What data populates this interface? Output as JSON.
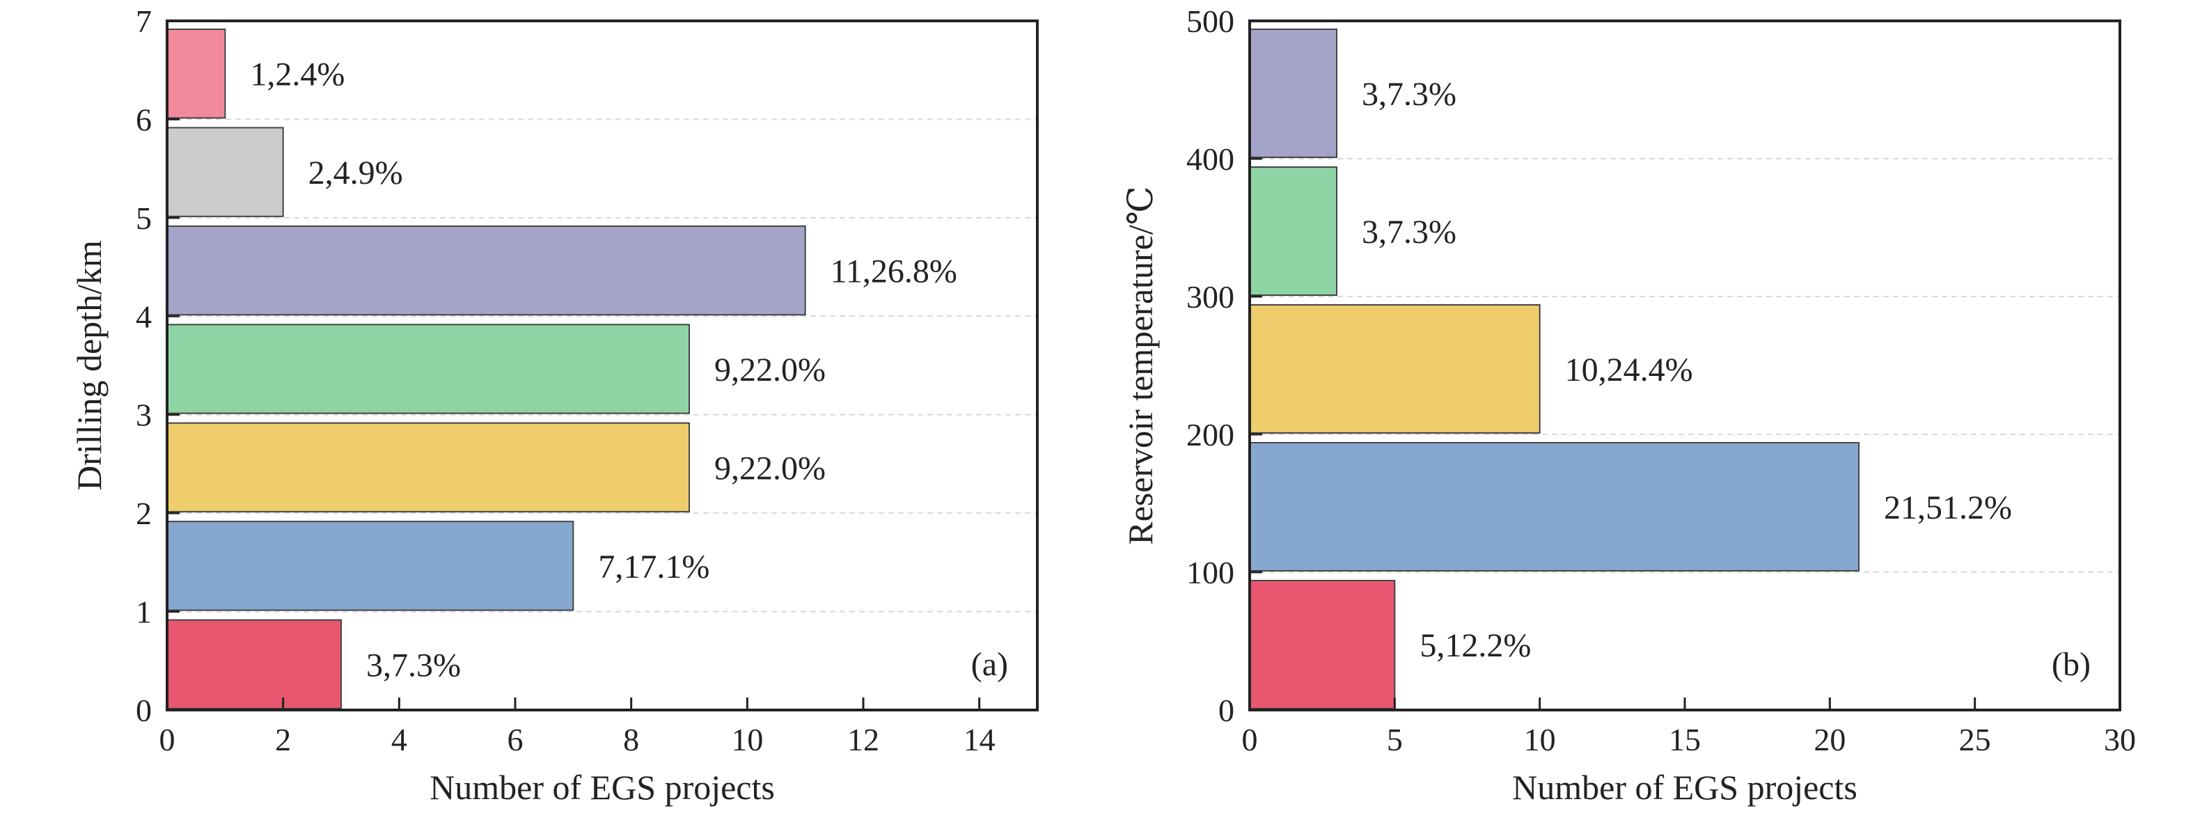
{
  "chart_data": [
    {
      "type": "bar",
      "orientation": "horizontal",
      "panel_label": "(a)",
      "xlabel": "Number of EGS projects",
      "ylabel": "Drilling depth/km",
      "xlim": [
        0,
        15
      ],
      "ylim": [
        0,
        7
      ],
      "xticks": [
        "0",
        "2",
        "4",
        "6",
        "8",
        "10",
        "12",
        "14"
      ],
      "yticks": [
        "0",
        "1",
        "2",
        "3",
        "4",
        "5",
        "6",
        "7"
      ],
      "grid": "horizontal dashed",
      "bars": [
        {
          "y_from": 0,
          "y_to": 1,
          "value": 3,
          "label": "3,7.3%",
          "color": "#e8566f"
        },
        {
          "y_from": 1,
          "y_to": 2,
          "value": 7,
          "label": "7,17.1%",
          "color": "#86a8d0"
        },
        {
          "y_from": 2,
          "y_to": 3,
          "value": 9,
          "label": "9,22.0%",
          "color": "#efcc6c"
        },
        {
          "y_from": 3,
          "y_to": 4,
          "value": 9,
          "label": "9,22.0%",
          "color": "#8fd4a4"
        },
        {
          "y_from": 4,
          "y_to": 5,
          "value": 11,
          "label": "11,26.8%",
          "color": "#a3a4c8"
        },
        {
          "y_from": 5,
          "y_to": 6,
          "value": 2,
          "label": "2,4.9%",
          "color": "#cccccc"
        },
        {
          "y_from": 6,
          "y_to": 7,
          "value": 1,
          "label": "1,2.4%",
          "color": "#f08a9b"
        }
      ]
    },
    {
      "type": "bar",
      "orientation": "horizontal",
      "panel_label": "(b)",
      "xlabel": "Number of EGS projects",
      "ylabel": "Reservoir temperature/℃",
      "xlim": [
        0,
        30
      ],
      "ylim": [
        0,
        500
      ],
      "xticks": [
        "0",
        "5",
        "10",
        "15",
        "20",
        "25",
        "30"
      ],
      "yticks": [
        "0",
        "100",
        "200",
        "300",
        "400",
        "500"
      ],
      "grid": "horizontal dashed",
      "bars": [
        {
          "y_from": 0,
          "y_to": 100,
          "value": 5,
          "label": "5,12.2%",
          "color": "#e8566f"
        },
        {
          "y_from": 100,
          "y_to": 200,
          "value": 21,
          "label": "21,51.2%",
          "color": "#86a8d0"
        },
        {
          "y_from": 200,
          "y_to": 300,
          "value": 10,
          "label": "10,24.4%",
          "color": "#efcc6c"
        },
        {
          "y_from": 300,
          "y_to": 400,
          "value": 3,
          "label": "3,7.3%",
          "color": "#8fd4a4"
        },
        {
          "y_from": 400,
          "y_to": 500,
          "value": 3,
          "label": "3,7.3%",
          "color": "#a3a4c8"
        }
      ]
    }
  ]
}
